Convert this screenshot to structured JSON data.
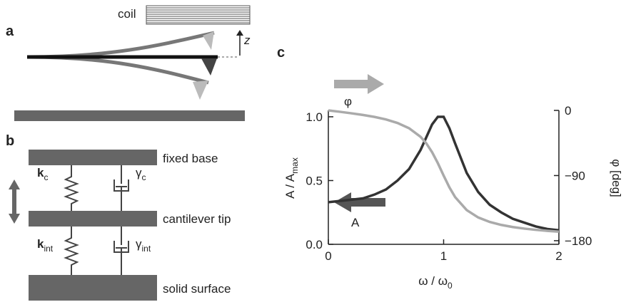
{
  "panel_a": {
    "label": "a",
    "coil": "coil",
    "z": "z"
  },
  "panel_b": {
    "label": "b",
    "fixed_base": "fixed base",
    "cantilever_tip": "cantilever tip",
    "solid_surface": "solid surface",
    "k_c": {
      "symbol": "k",
      "subscript": "c"
    },
    "gamma_c": {
      "symbol": "γ",
      "subscript": "c"
    },
    "k_int": {
      "symbol": "k",
      "subscript": "int"
    },
    "gamma_int": {
      "symbol": "γ",
      "subscript": "int"
    }
  },
  "chart_data": {
    "type": "line",
    "panel_label": "c",
    "x": [
      0,
      0.1,
      0.2,
      0.3,
      0.4,
      0.5,
      0.6,
      0.7,
      0.8,
      0.85,
      0.9,
      0.95,
      1.0,
      1.05,
      1.1,
      1.2,
      1.3,
      1.4,
      1.5,
      1.6,
      1.7,
      1.8,
      1.9,
      2.0
    ],
    "xlim": [
      0,
      2
    ],
    "xticks": [
      0,
      1,
      2
    ],
    "ylim": [
      0,
      1.05
    ],
    "yticks": [
      {
        "value": 0,
        "label": "0.0"
      },
      {
        "value": 0.5,
        "label": "0.5"
      },
      {
        "value": 1,
        "label": "1.0"
      }
    ],
    "y2lim": [
      -185,
      0
    ],
    "y2ticks": [
      {
        "value": -180,
        "label": "−180"
      },
      {
        "value": -90,
        "label": "−90"
      },
      0
    ],
    "xlabel": {
      "text": "ω / ω",
      "subscript": "0"
    },
    "ylabel": {
      "text": "A / A",
      "subscript": "max"
    },
    "y2label": "φ [deg]",
    "series": [
      {
        "name": "A",
        "color": "#333333",
        "values": [
          0.33,
          0.34,
          0.35,
          0.36,
          0.39,
          0.43,
          0.5,
          0.59,
          0.74,
          0.84,
          0.94,
          1.0,
          1.0,
          0.91,
          0.79,
          0.56,
          0.41,
          0.31,
          0.25,
          0.2,
          0.17,
          0.14,
          0.12,
          0.11
        ]
      },
      {
        "name": "φ",
        "color": "#aaaaaa",
        "axis": "y2",
        "values": [
          0,
          -1.9,
          -4.0,
          -6.3,
          -9.0,
          -12.5,
          -17.4,
          -24.6,
          -36.5,
          -45.6,
          -57.7,
          -72.9,
          -90,
          -106.3,
          -119.8,
          -137.7,
          -147.9,
          -154.1,
          -158.2,
          -161.1,
          -163.3,
          -165.0,
          -166.4,
          -167.5
        ]
      }
    ]
  }
}
